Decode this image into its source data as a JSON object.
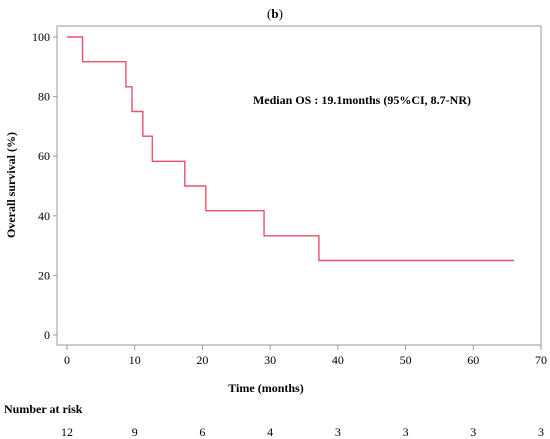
{
  "chart_data": {
    "type": "line",
    "panel_label_open": "(",
    "panel_label_letter": "b",
    "panel_label_close": ")",
    "xlabel": "Time (months)",
    "ylabel": "Overall survival (%)",
    "xlim": [
      0,
      70
    ],
    "ylim": [
      0,
      100
    ],
    "xticks": [
      0,
      10,
      20,
      30,
      40,
      50,
      60,
      70
    ],
    "yticks": [
      0,
      20,
      40,
      60,
      80,
      100
    ],
    "grid": false,
    "step": true,
    "annotation": "Median OS : 19.1months (95%CI, 8.7-NR)",
    "series": [
      {
        "color": "#e8506e",
        "x": [
          0,
          2.3,
          8.7,
          9.6,
          11.2,
          12.6,
          17.4,
          20.5,
          29.1,
          37.2,
          66
        ],
        "y": [
          100,
          91.7,
          83.3,
          75.0,
          66.7,
          58.3,
          50.0,
          41.7,
          33.3,
          25.0,
          25.0
        ]
      }
    ],
    "risk_table": {
      "title": "Number at risk",
      "values": [
        "12",
        "9",
        "6",
        "4",
        "3",
        "3",
        "3",
        "3"
      ]
    }
  }
}
